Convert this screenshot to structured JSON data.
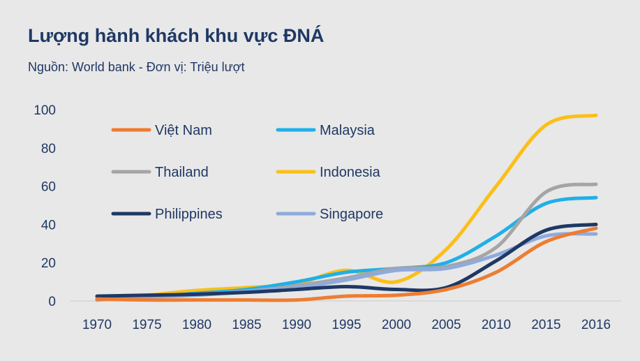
{
  "chart_data": {
    "type": "line",
    "title": "Lượng hành khách khu vực ĐNÁ",
    "subtitle": "Nguồn: World bank - Đơn vị: Triệu lượt",
    "xlabel": "",
    "ylabel": "",
    "categories": [
      "1970",
      "1975",
      "1980",
      "1985",
      "1990",
      "1995",
      "2000",
      "2005",
      "2010",
      "2015",
      "2016"
    ],
    "ylim": [
      0,
      100
    ],
    "yticks": [
      "0",
      "20",
      "40",
      "60",
      "80",
      "100"
    ],
    "grid": false,
    "legend_placement": "top-left",
    "series": [
      {
        "name": "Việt Nam",
        "color": "#ed7d31",
        "values": [
          1,
          0.5,
          0.5,
          0.5,
          0.5,
          2.5,
          3,
          6,
          15,
          31,
          38
        ]
      },
      {
        "name": "Malaysia",
        "color": "#1fb0e8",
        "values": [
          1,
          2,
          4,
          6,
          10,
          15,
          17,
          20,
          34,
          51,
          54
        ]
      },
      {
        "name": "Thailand",
        "color": "#a5a5a5",
        "values": [
          1,
          2,
          3.5,
          5,
          8,
          12,
          17,
          18,
          28,
          57,
          61
        ]
      },
      {
        "name": "Indonesia",
        "color": "#fbbf17",
        "values": [
          1,
          3,
          5.5,
          7,
          9,
          16,
          10,
          27,
          60,
          92,
          97
        ]
      },
      {
        "name": "Philippines",
        "color": "#1f3864",
        "values": [
          2.5,
          3,
          3.5,
          4.5,
          6,
          7.5,
          6,
          7,
          21,
          37,
          40
        ]
      },
      {
        "name": "Singapore",
        "color": "#8faadc",
        "values": [
          0.5,
          2,
          3,
          5,
          7,
          11,
          16,
          17,
          24,
          34,
          35
        ]
      }
    ]
  }
}
